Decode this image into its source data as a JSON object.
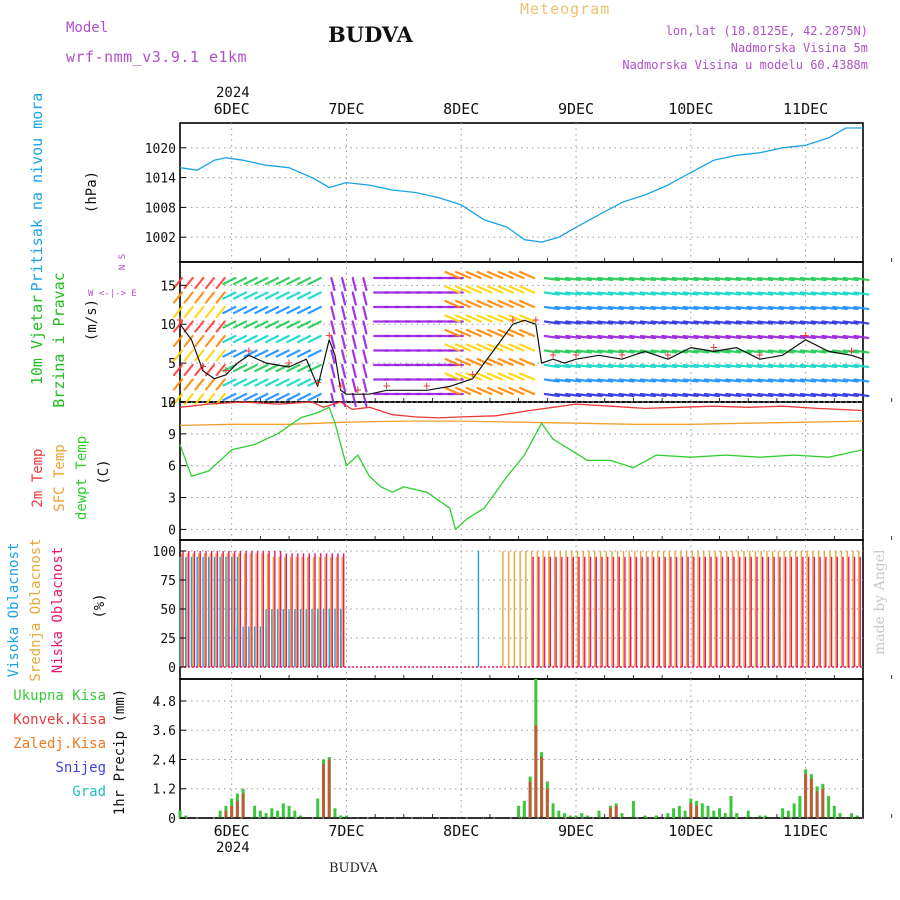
{
  "header": {
    "model_label": "Model",
    "model_name": "wrf-nmm_v3.9.1 e1km",
    "city": "BUDVA",
    "app_title": "Meteogram",
    "lonlat": "lon,lat (18.8125E, 42.2875N)",
    "altitude": "Nadmorska Visina 5m",
    "model_altitude": "Nadmorska Visina u modelu 60.4388m",
    "footer_city": "BUDVA",
    "watermark": "made by Angel",
    "year_top": "2024",
    "year_bottom": "2024"
  },
  "colors": {
    "pressure": "#1aa3e6",
    "temp2m": "#e83a3a",
    "sfc": "#f0a030",
    "dewpt": "#2ecf2e",
    "high_cloud": "#1aa3e6",
    "mid_cloud": "#e8a838",
    "low_cloud": "#e8186c",
    "total_precip": "#3ac83a",
    "conv_precip": "#e83a3a",
    "frozen": "#f07820",
    "snow": "#4040e0",
    "hail": "#20c0c0",
    "model_text": "#b050c8",
    "wind_label": "#22bb22"
  },
  "chart_data": [
    {
      "type": "line",
      "title": "Pritisak na nivou mora",
      "ylabel": "(hPa)",
      "x_tick_labels": [
        "6DEC",
        "7DEC",
        "8DEC",
        "9DEC",
        "10DEC",
        "11DEC"
      ],
      "x_range_days": [
        5.55,
        11.5
      ],
      "ylim": [
        997,
        1025
      ],
      "y_ticks": [
        1002,
        1008,
        1014,
        1020
      ],
      "grid": true,
      "series": [
        {
          "x": [
            5.55,
            5.7,
            5.85,
            5.95,
            6.1,
            6.3,
            6.5,
            6.7,
            6.85,
            7.0,
            7.2,
            7.4,
            7.6,
            7.8,
            8.0,
            8.2,
            8.4,
            8.55,
            8.7,
            8.85,
            9.0,
            9.2,
            9.4,
            9.6,
            9.8,
            10.0,
            10.2,
            10.4,
            10.6,
            10.8,
            11.0,
            11.2,
            11.35,
            11.5
          ],
          "values": [
            1016,
            1015.5,
            1017.5,
            1018,
            1017.5,
            1016.5,
            1016,
            1014,
            1012,
            1013,
            1012.5,
            1011.5,
            1011,
            1010,
            1008.5,
            1005.5,
            1004,
            1001.5,
            1001,
            1002,
            1004,
            1006.5,
            1009,
            1010.5,
            1012.5,
            1015,
            1017.5,
            1018.5,
            1019,
            1020,
            1020.5,
            1022,
            1024,
            1024
          ]
        }
      ]
    },
    {
      "type": "line",
      "title": "10m Vjetar Brzina i Pravac",
      "ylabel": "(m/s)",
      "compass_labels": [
        "N",
        "W",
        "E",
        "S"
      ],
      "ylim": [
        0,
        18
      ],
      "y_ticks": [
        0,
        5,
        10,
        15
      ],
      "grid": true,
      "series": [
        {
          "name": "speed",
          "x": [
            5.55,
            5.65,
            5.75,
            5.85,
            5.95,
            6.05,
            6.15,
            6.3,
            6.5,
            6.65,
            6.75,
            6.8,
            6.85,
            6.9,
            6.95,
            7.0,
            7.1,
            7.2,
            7.35,
            7.5,
            7.7,
            7.9,
            8.1,
            8.3,
            8.45,
            8.55,
            8.65,
            8.7,
            8.8,
            8.9,
            9.0,
            9.2,
            9.4,
            9.6,
            9.8,
            10.0,
            10.2,
            10.4,
            10.6,
            10.8,
            11.0,
            11.2,
            11.4,
            11.5
          ],
          "values": [
            10,
            8,
            4,
            3,
            3.5,
            5,
            6,
            5,
            4.5,
            5.5,
            2,
            5,
            8,
            6,
            1.5,
            1,
            1,
            1,
            1.5,
            1.5,
            1.5,
            2,
            3,
            7,
            10,
            10.5,
            10,
            5,
            5.5,
            5,
            5.5,
            6,
            5.5,
            6.5,
            5.5,
            7,
            6.5,
            7,
            5.5,
            6,
            8,
            6.5,
            6,
            5.5
          ]
        }
      ]
    },
    {
      "type": "line",
      "ylabel": "(C)",
      "ylim": [
        -1,
        12
      ],
      "y_ticks": [
        0,
        3,
        6,
        9,
        12
      ],
      "grid": true,
      "series": [
        {
          "name": "2m Temp",
          "x": [
            5.55,
            5.8,
            6.1,
            6.4,
            6.7,
            6.8,
            6.95,
            7.05,
            7.2,
            7.4,
            7.6,
            7.8,
            8.0,
            8.3,
            8.6,
            8.8,
            9.0,
            9.3,
            9.6,
            9.9,
            10.2,
            10.5,
            10.8,
            11.1,
            11.5
          ],
          "values": [
            11.5,
            11.8,
            12,
            11.8,
            12,
            11.5,
            12,
            11.3,
            11.5,
            10.8,
            10.6,
            10.5,
            10.6,
            10.7,
            11.2,
            11.5,
            11.8,
            11.6,
            11.4,
            11.5,
            11.6,
            11.5,
            11.6,
            11.4,
            11.2
          ]
        },
        {
          "name": "SFC Temp",
          "x": [
            5.55,
            6.0,
            6.5,
            7.0,
            7.5,
            8.0,
            8.5,
            9.0,
            9.5,
            10.0,
            10.5,
            11.0,
            11.5
          ],
          "values": [
            9.8,
            9.9,
            9.9,
            10.1,
            10.2,
            10.2,
            10.1,
            10,
            9.9,
            9.9,
            10,
            10.1,
            10.2
          ]
        },
        {
          "name": "dewpt Temp",
          "x": [
            5.55,
            5.65,
            5.8,
            6.0,
            6.2,
            6.4,
            6.6,
            6.75,
            6.85,
            6.9,
            7.0,
            7.1,
            7.2,
            7.3,
            7.4,
            7.5,
            7.7,
            7.9,
            7.95,
            8.05,
            8.2,
            8.4,
            8.55,
            8.7,
            8.8,
            8.95,
            9.1,
            9.3,
            9.5,
            9.7,
            10.0,
            10.3,
            10.6,
            10.9,
            11.2,
            11.5
          ],
          "values": [
            8,
            5,
            5.5,
            7.5,
            8,
            9,
            10.5,
            11,
            11.5,
            10,
            6,
            7,
            5,
            4,
            3.5,
            4,
            3.5,
            2,
            0,
            1,
            2,
            5,
            7,
            10,
            8.5,
            7.5,
            6.5,
            6.5,
            5.8,
            7,
            6.8,
            7,
            6.8,
            7,
            6.8,
            7.5
          ]
        }
      ]
    },
    {
      "type": "bar",
      "ylabel": "(%)",
      "ylim": [
        0,
        100
      ],
      "y_ticks": [
        0,
        25,
        50,
        75,
        100
      ],
      "grid": true,
      "series": [
        {
          "name": "Visoka Oblacnost",
          "intervals": [
            [
              5.55,
              6.05,
              95
            ],
            [
              6.05,
              6.3,
              35
            ],
            [
              6.3,
              6.95,
              50
            ],
            [
              8.15,
              8.2,
              100
            ]
          ]
        },
        {
          "name": "Srednja Oblacnost",
          "intervals": [
            [
              5.55,
              6.3,
              98
            ],
            [
              6.3,
              6.95,
              95
            ],
            [
              8.35,
              11.5,
              100
            ]
          ]
        },
        {
          "name": "Niska Oblacnost",
          "intervals": [
            [
              5.55,
              6.4,
              100
            ],
            [
              6.4,
              6.95,
              98
            ],
            [
              8.6,
              11.5,
              95
            ]
          ]
        }
      ]
    },
    {
      "type": "bar",
      "ylabel": "1hr Precip (mm)",
      "ylim": [
        0,
        5.7
      ],
      "y_ticks": [
        0,
        1.2,
        2.4,
        3.6,
        4.8
      ],
      "grid": true,
      "legend": [
        "Ukupna Kisa",
        "Konvek.Kisa",
        "Zaledj.Kisa",
        "Snijeg",
        "Grad"
      ],
      "series": [
        {
          "name": "Ukupna Kisa",
          "x": [
            5.55,
            5.6,
            5.9,
            5.95,
            6.0,
            6.05,
            6.1,
            6.2,
            6.25,
            6.3,
            6.35,
            6.4,
            6.45,
            6.5,
            6.55,
            6.6,
            6.75,
            6.8,
            6.85,
            6.9,
            6.95,
            7.0,
            8.5,
            8.55,
            8.6,
            8.65,
            8.7,
            8.75,
            8.8,
            8.85,
            8.9,
            8.95,
            9.0,
            9.05,
            9.1,
            9.2,
            9.3,
            9.35,
            9.4,
            9.5,
            9.6,
            9.7,
            9.8,
            9.85,
            9.9,
            9.95,
            10.0,
            10.05,
            10.1,
            10.15,
            10.2,
            10.25,
            10.3,
            10.35,
            10.4,
            10.5,
            10.6,
            10.65,
            10.8,
            10.85,
            10.9,
            10.95,
            11.0,
            11.05,
            11.1,
            11.15,
            11.2,
            11.25,
            11.3,
            11.4,
            11.45
          ],
          "values": [
            0.3,
            0.1,
            0.3,
            0.5,
            0.8,
            1.0,
            1.2,
            0.5,
            0.3,
            0.2,
            0.4,
            0.3,
            0.6,
            0.5,
            0.3,
            0.1,
            0.8,
            2.4,
            2.5,
            0.4,
            0.1,
            0.1,
            0.5,
            0.7,
            1.7,
            5.7,
            2.7,
            1.5,
            0.6,
            0.3,
            0.2,
            0.1,
            0.1,
            0.2,
            0.1,
            0.3,
            0.5,
            0.6,
            0.2,
            0.7,
            0.1,
            0.1,
            0.2,
            0.4,
            0.5,
            0.3,
            0.8,
            0.7,
            0.6,
            0.5,
            0.3,
            0.4,
            0.2,
            0.9,
            0.2,
            0.3,
            0.1,
            0.1,
            0.4,
            0.3,
            0.6,
            0.9,
            2.0,
            1.8,
            1.3,
            1.4,
            0.9,
            0.5,
            0.2,
            0.2,
            0.1
          ]
        },
        {
          "name": "Konvek.Kisa",
          "x": [
            5.95,
            6.0,
            6.05,
            6.1,
            6.8,
            6.85,
            8.6,
            8.65,
            8.7,
            8.75,
            9.3,
            9.35,
            10.0,
            10.05,
            11.0,
            11.05,
            11.1,
            11.15
          ],
          "values": [
            0.3,
            0.5,
            0.7,
            1.0,
            2.2,
            2.4,
            1.5,
            3.8,
            2.5,
            1.2,
            0.4,
            0.5,
            0.6,
            0.5,
            1.8,
            1.6,
            1.1,
            1.2
          ]
        }
      ]
    }
  ]
}
